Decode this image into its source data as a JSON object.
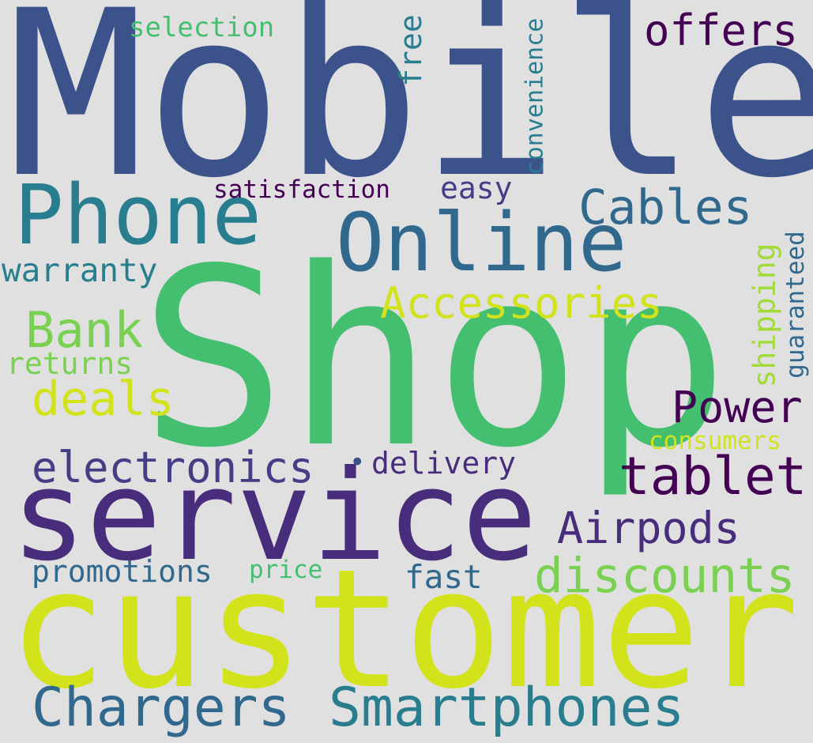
{
  "colors": {
    "background": "#e0e0e0",
    "navy": "#3b528b",
    "blue": "#31688e",
    "teal": "#287d8e",
    "green": "#44bf70",
    "lime": "#7ad151",
    "light_green": "#a2da37",
    "yellow": "#d2e21b",
    "purple": "#472d7b",
    "indigo": "#433e85",
    "deep_purple": "#440154"
  },
  "words": [
    {
      "key": "mobile",
      "text": "Mobile",
      "color": "navy"
    },
    {
      "key": "shop",
      "text": "Shop",
      "color": "green"
    },
    {
      "key": "customer",
      "text": "customer",
      "color": "yellow"
    },
    {
      "key": "service",
      "text": "service",
      "color": "purple"
    },
    {
      "key": "phone",
      "text": "Phone",
      "color": "teal"
    },
    {
      "key": "online",
      "text": "Online",
      "color": "blue"
    },
    {
      "key": "cables",
      "text": "Cables",
      "color": "blue"
    },
    {
      "key": "offers",
      "text": "offers",
      "color": "deep_purple"
    },
    {
      "key": "selection",
      "text": "selection",
      "color": "green"
    },
    {
      "key": "free",
      "text": "free",
      "color": "teal"
    },
    {
      "key": "convenience",
      "text": "convenience",
      "color": "teal"
    },
    {
      "key": "satisfaction",
      "text": "satisfaction",
      "color": "deep_purple"
    },
    {
      "key": "easy",
      "text": "easy",
      "color": "indigo"
    },
    {
      "key": "accessories",
      "text": "Accessories",
      "color": "yellow"
    },
    {
      "key": "warranty",
      "text": "warranty",
      "color": "teal"
    },
    {
      "key": "bank",
      "text": "Bank",
      "color": "lime"
    },
    {
      "key": "returns",
      "text": "returns",
      "color": "lime"
    },
    {
      "key": "deals",
      "text": "deals",
      "color": "yellow"
    },
    {
      "key": "shipping",
      "text": "shipping",
      "color": "light_green"
    },
    {
      "key": "guaranteed",
      "text": "guaranteed",
      "color": "blue"
    },
    {
      "key": "power",
      "text": "Power",
      "color": "deep_purple"
    },
    {
      "key": "consumers",
      "text": "consumers",
      "color": "yellow"
    },
    {
      "key": "electronics",
      "text": "electronics",
      "color": "indigo"
    },
    {
      "key": "delivery",
      "text": "delivery",
      "color": "purple"
    },
    {
      "key": "tablet",
      "text": "tablet",
      "color": "deep_purple"
    },
    {
      "key": "airpods",
      "text": "Airpods",
      "color": "purple"
    },
    {
      "key": "promotions",
      "text": "promotions",
      "color": "blue"
    },
    {
      "key": "price",
      "text": "price",
      "color": "green"
    },
    {
      "key": "fast",
      "text": "fast",
      "color": "blue"
    },
    {
      "key": "discounts",
      "text": "discounts",
      "color": "lime"
    },
    {
      "key": "chargers",
      "text": "Chargers",
      "color": "blue"
    },
    {
      "key": "smartphones",
      "text": "Smartphones",
      "color": "teal"
    },
    {
      "key": "bullet",
      "text": "•",
      "color": "navy"
    }
  ]
}
